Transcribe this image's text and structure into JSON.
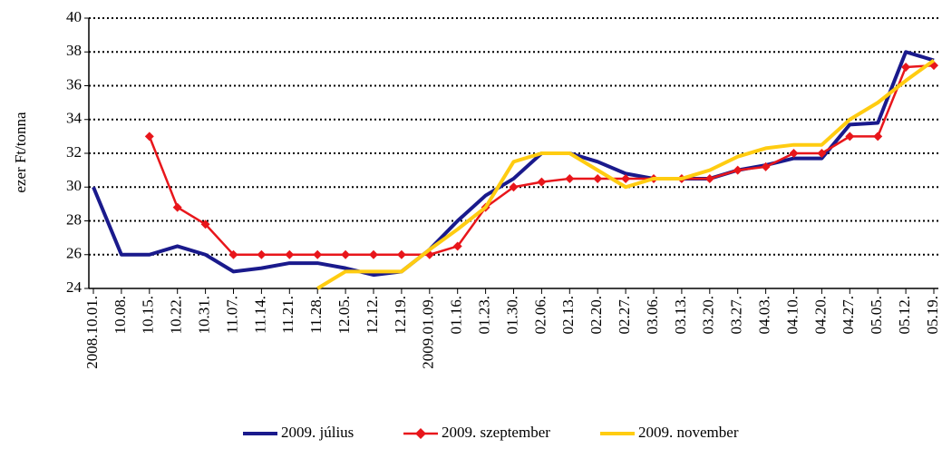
{
  "chart_data": {
    "type": "line",
    "y_label": "ezer Ft/tonna",
    "categories": [
      "2008.10.01.",
      "10.08.",
      "10.15.",
      "10.22.",
      "10.31.",
      "11.07.",
      "11.14.",
      "11.21.",
      "11.28.",
      "12.05.",
      "12.12.",
      "12.19.",
      "2009.01.09.",
      "01.16.",
      "01.23.",
      "01.30.",
      "02.06.",
      "02.13.",
      "02.20.",
      "02.27.",
      "03.06.",
      "03.13.",
      "03.20.",
      "03.27.",
      "04.03.",
      "04.10.",
      "04.20.",
      "04.27.",
      "05.05.",
      "05.12.",
      "05.19."
    ],
    "series": [
      {
        "name": "2009. július",
        "color": "#1a1a8c",
        "marker": "none",
        "values": [
          30,
          26,
          26,
          26.5,
          26,
          25,
          25.2,
          25.5,
          25.5,
          25.2,
          24.8,
          25,
          26.3,
          28,
          29.5,
          30.5,
          32,
          32,
          31.5,
          30.8,
          30.5,
          30.5,
          30.5,
          31,
          31.3,
          31.7,
          31.7,
          33.7,
          33.8,
          38,
          37.5
        ]
      },
      {
        "name": "2009. szeptember",
        "color": "#e8161b",
        "marker": "diamond",
        "values": [
          null,
          null,
          33,
          28.8,
          27.8,
          26,
          26,
          26,
          26,
          26,
          26,
          26,
          26,
          26.5,
          28.8,
          30,
          30.3,
          30.5,
          30.5,
          30.5,
          30.5,
          30.5,
          30.5,
          31,
          31.2,
          32,
          32,
          33,
          33,
          37.1,
          37.2
        ]
      },
      {
        "name": "2009. november",
        "color": "#ffcc11",
        "marker": "none",
        "values": [
          null,
          null,
          null,
          null,
          null,
          null,
          null,
          null,
          24,
          25,
          25,
          25,
          26.3,
          27.5,
          28.8,
          31.5,
          32,
          32,
          31,
          30,
          30.5,
          30.5,
          31,
          31.8,
          32.3,
          32.5,
          32.5,
          34,
          35,
          36.3,
          37.5
        ]
      }
    ],
    "ylim": [
      24,
      40
    ],
    "yticks": [
      24,
      26,
      28,
      30,
      32,
      34,
      36,
      38,
      40
    ],
    "grid": true,
    "legend": "bottom"
  }
}
